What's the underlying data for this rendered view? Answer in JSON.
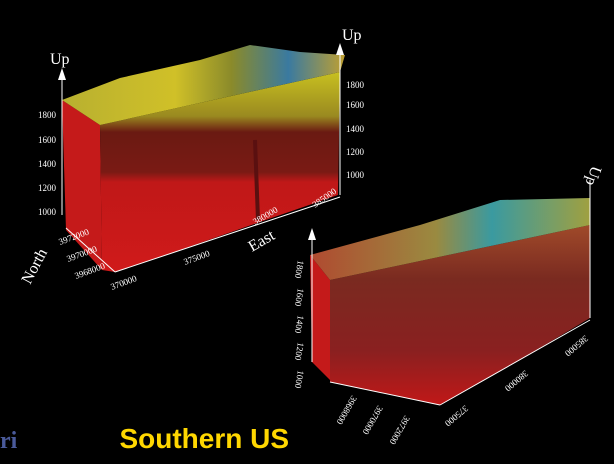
{
  "left_block": {
    "up_left": "Up",
    "up_right": "Up",
    "z_ticks_left": [
      "1800",
      "1600",
      "1400",
      "1200",
      "1000"
    ],
    "z_ticks_right": [
      "1800",
      "1600",
      "1400",
      "1200",
      "1000"
    ],
    "north_label": "North",
    "east_label": "East",
    "north_ticks": [
      "3972000",
      "3970000",
      "3968000"
    ],
    "east_ticks": [
      "370000",
      "375000",
      "380000",
      "385000"
    ]
  },
  "right_block": {
    "up": "Up",
    "z_ticks": [
      "1800",
      "1600",
      "1400",
      "1200",
      "1000"
    ],
    "north_ticks": [
      "3968000",
      "3970000",
      "3972000"
    ],
    "east_ticks": [
      "375000",
      "380000",
      "385000"
    ]
  },
  "caption": "Southern US",
  "side_fragment": "ri"
}
